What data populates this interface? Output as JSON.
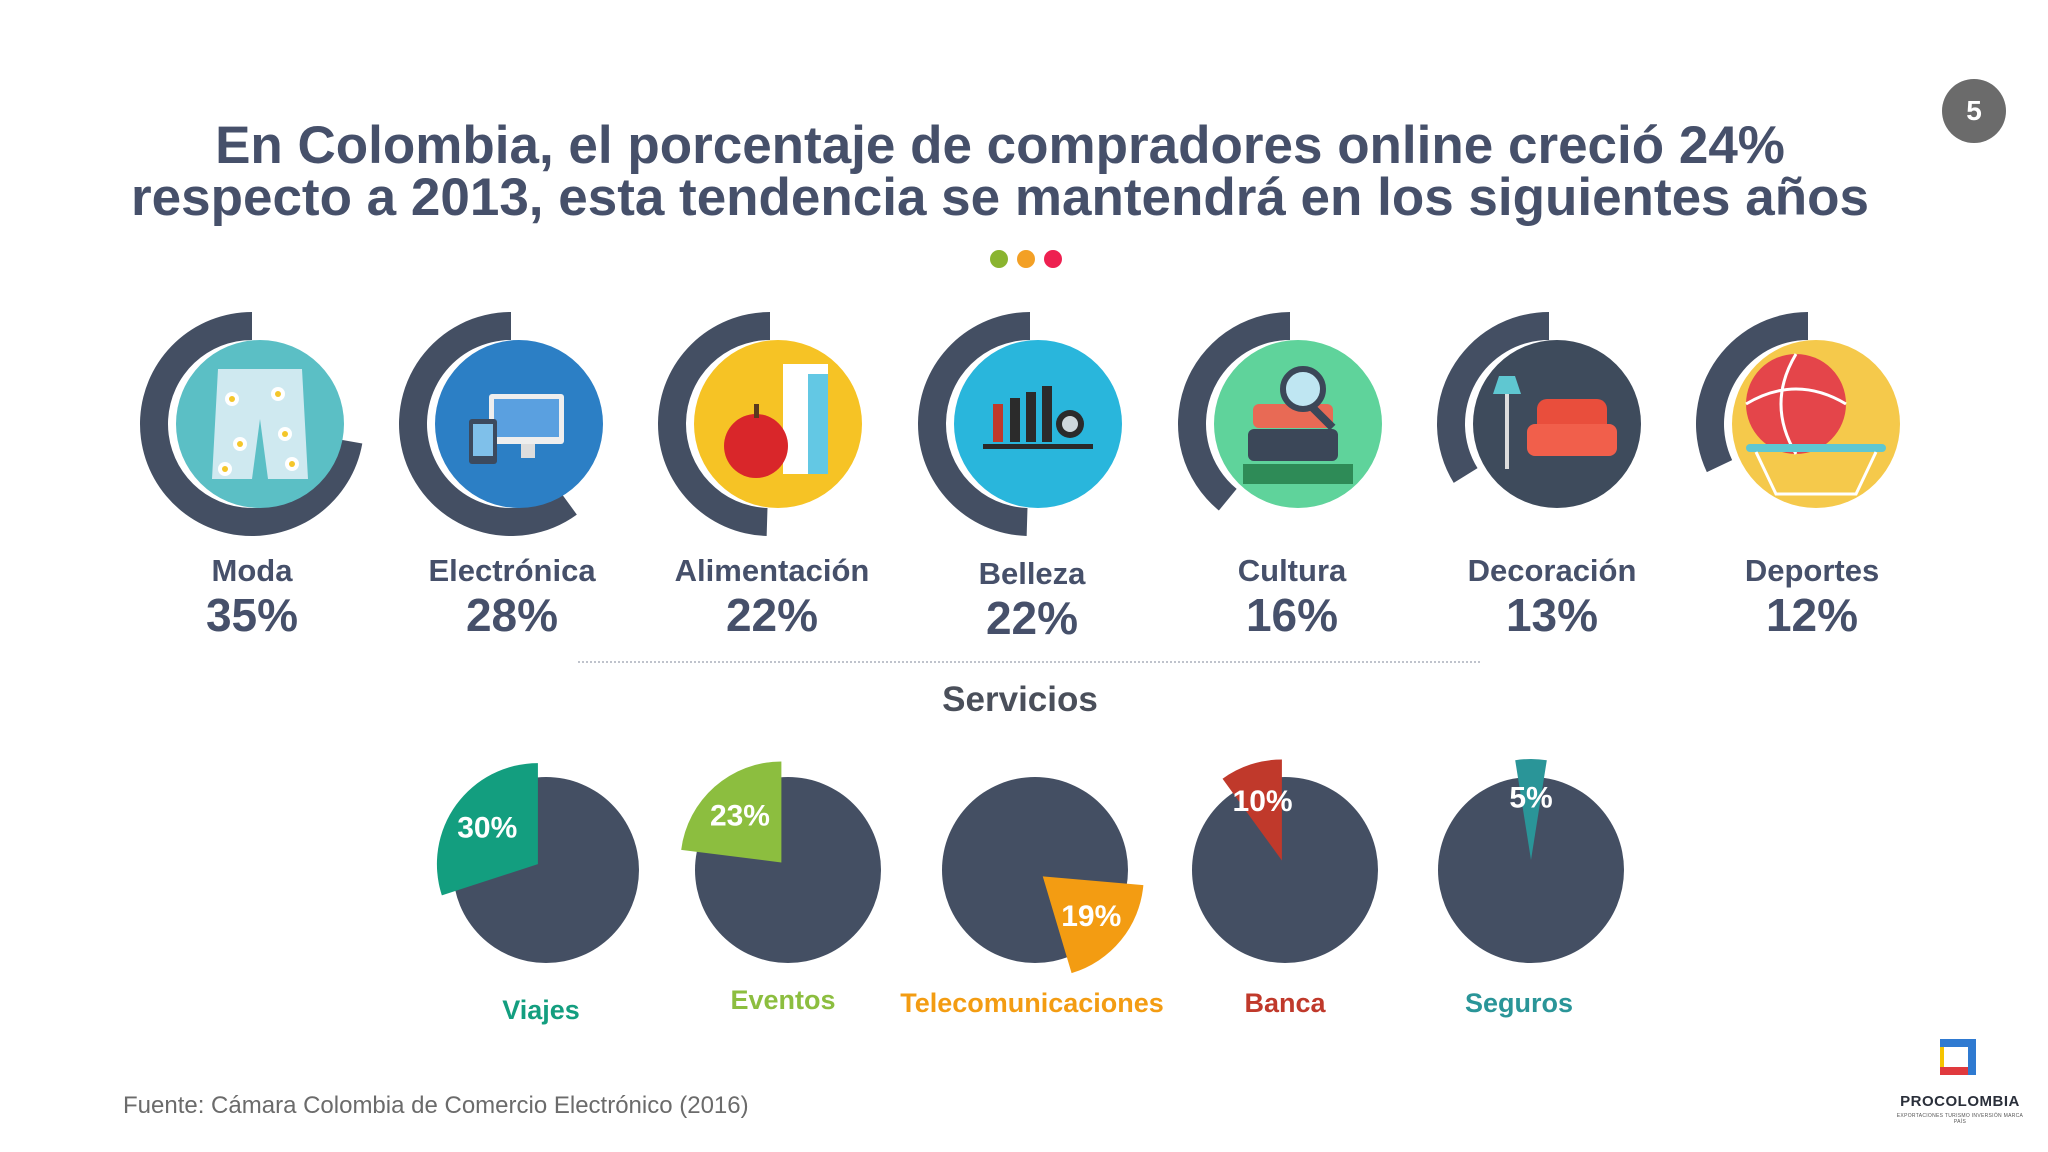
{
  "page_number": "5",
  "title": {
    "line1": "En Colombia, el porcentaje de compradores online creció 24%",
    "line2": "respecto a 2013, esta tendencia se mantendrá en los siguientes años"
  },
  "dot_colors": [
    "#8ab42f",
    "#f3a025",
    "#ee2050"
  ],
  "colors": {
    "title": "#46506a",
    "pie_base": "#444f63",
    "ring": "#444f63"
  },
  "chart_data": [
    {
      "type": "bar",
      "categories": [
        "Moda",
        "Electrónica",
        "Alimentación",
        "Belleza",
        "Cultura",
        "Decoración",
        "Deportes"
      ],
      "values": [
        35,
        28,
        22,
        22,
        16,
        13,
        12
      ],
      "value_labels": [
        "35%",
        "28%",
        "22%",
        "22%",
        "16%",
        "13%",
        "12%"
      ],
      "icons": [
        "shorts-icon",
        "devices-icon",
        "food-icon",
        "makeup-icon",
        "books-icon",
        "sofa-icon",
        "basketball-icon"
      ],
      "icon_colors": [
        "#5bbfc5",
        "#2c7fc5",
        "#f6c325",
        "#29b6dc",
        "#5fd39b",
        "#3e4b5c",
        "#f5c94b"
      ]
    },
    {
      "type": "pie",
      "title": "Servicios",
      "categories": [
        "Viajes",
        "Eventos",
        "Telecomunicaciones",
        "Banca",
        "Seguros"
      ],
      "values": [
        30,
        23,
        19,
        10,
        5
      ],
      "value_labels": [
        "30%",
        "23%",
        "19%",
        "10%",
        "5%"
      ],
      "colors": [
        "#139e7f",
        "#8cbe3f",
        "#f39c12",
        "#c0392b",
        "#2a9598"
      ]
    }
  ],
  "source": "Fuente: Cámara Colombia de Comercio Electrónico (2016)",
  "logo": {
    "name": "PROCOLOMBIA",
    "tagline": "EXPORTACIONES TURISMO INVERSIÓN MARCA PAÍS"
  }
}
